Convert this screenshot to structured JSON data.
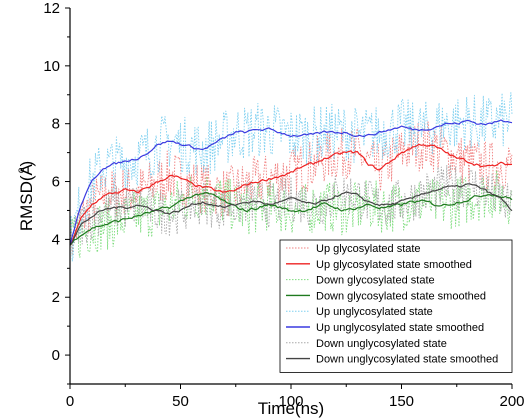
{
  "chart_data": {
    "type": "line",
    "xlabel": "Time(ns)",
    "ylabel": "RMSD(Å)",
    "ylabel_main": "RMSD(",
    "ylabel_unit": "A",
    "ylabel_ring": "o",
    "ylabel_close": ")",
    "xlim": [
      0,
      200
    ],
    "ylim": [
      -1,
      12
    ],
    "xticks": [
      0,
      50,
      100,
      150,
      200
    ],
    "yticks": [
      0,
      2,
      4,
      6,
      8,
      10,
      12
    ],
    "grid": false,
    "legend_position": "bottom-right",
    "x": [
      0,
      5,
      10,
      15,
      20,
      25,
      30,
      35,
      40,
      45,
      50,
      55,
      60,
      65,
      70,
      75,
      80,
      85,
      90,
      95,
      100,
      105,
      110,
      115,
      120,
      125,
      130,
      135,
      140,
      145,
      150,
      155,
      160,
      165,
      170,
      175,
      180,
      185,
      190,
      195,
      200
    ],
    "series": [
      {
        "name": "Up glycosylated state",
        "style": "dotted",
        "color": "#f08080",
        "noise": 0.9,
        "values": [
          3.8,
          4.7,
          5.2,
          5.5,
          5.6,
          5.7,
          5.6,
          5.8,
          6.0,
          6.2,
          6.1,
          5.9,
          5.8,
          5.7,
          5.6,
          5.7,
          5.9,
          6.0,
          6.1,
          6.2,
          6.3,
          6.5,
          6.6,
          6.8,
          6.9,
          7.0,
          7.0,
          6.6,
          6.4,
          6.7,
          7.0,
          7.2,
          7.3,
          7.2,
          7.0,
          6.8,
          6.7,
          6.6,
          6.5,
          6.6,
          6.6
        ]
      },
      {
        "name": "Up glycosylated state smoothed",
        "style": "solid",
        "color": "#ee2222",
        "noise": 0.12,
        "values": [
          3.8,
          4.7,
          5.2,
          5.5,
          5.6,
          5.7,
          5.6,
          5.8,
          6.0,
          6.2,
          6.1,
          5.9,
          5.8,
          5.7,
          5.6,
          5.7,
          5.9,
          6.0,
          6.1,
          6.2,
          6.3,
          6.5,
          6.6,
          6.8,
          6.9,
          7.0,
          7.0,
          6.6,
          6.4,
          6.7,
          7.0,
          7.2,
          7.3,
          7.2,
          7.0,
          6.8,
          6.7,
          6.6,
          6.5,
          6.6,
          6.6
        ]
      },
      {
        "name": "Down glycosylated state",
        "style": "dotted",
        "color": "#7ddc7d",
        "noise": 0.9,
        "values": [
          3.8,
          4.2,
          4.4,
          4.5,
          4.6,
          4.7,
          4.8,
          4.9,
          5.0,
          5.1,
          5.3,
          5.5,
          5.6,
          5.5,
          5.3,
          5.1,
          5.0,
          5.1,
          5.2,
          5.1,
          5.0,
          5.0,
          5.1,
          5.2,
          5.1,
          5.0,
          5.1,
          5.2,
          5.1,
          5.1,
          5.2,
          5.3,
          5.3,
          5.2,
          5.2,
          5.3,
          5.4,
          5.5,
          5.6,
          5.5,
          5.4
        ]
      },
      {
        "name": "Down glycosylated state smoothed",
        "style": "solid",
        "color": "#1f7a1f",
        "noise": 0.12,
        "values": [
          3.8,
          4.2,
          4.4,
          4.5,
          4.6,
          4.7,
          4.8,
          4.9,
          5.0,
          5.1,
          5.3,
          5.5,
          5.6,
          5.5,
          5.3,
          5.1,
          5.0,
          5.1,
          5.2,
          5.1,
          5.0,
          5.0,
          5.1,
          5.2,
          5.1,
          5.0,
          5.1,
          5.2,
          5.1,
          5.1,
          5.2,
          5.3,
          5.3,
          5.2,
          5.2,
          5.3,
          5.4,
          5.5,
          5.6,
          5.5,
          5.4
        ]
      },
      {
        "name": "Up unglycosylated state",
        "style": "dotted",
        "color": "#7fd0f0",
        "noise": 1.0,
        "values": [
          3.8,
          5.2,
          6.0,
          6.5,
          6.6,
          6.7,
          6.8,
          7.0,
          7.3,
          7.4,
          7.3,
          7.2,
          7.1,
          7.3,
          7.5,
          7.7,
          7.7,
          7.8,
          7.8,
          7.7,
          7.6,
          7.6,
          7.6,
          7.7,
          7.7,
          7.7,
          7.6,
          7.6,
          7.7,
          7.8,
          7.9,
          7.8,
          7.8,
          7.9,
          8.0,
          8.0,
          8.1,
          8.0,
          8.0,
          8.1,
          8.1
        ]
      },
      {
        "name": "Up unglycosylated state smoothed",
        "style": "solid",
        "color": "#3a3ae0",
        "noise": 0.1,
        "values": [
          3.8,
          5.2,
          6.0,
          6.5,
          6.6,
          6.7,
          6.8,
          7.0,
          7.3,
          7.4,
          7.3,
          7.2,
          7.1,
          7.3,
          7.5,
          7.7,
          7.7,
          7.8,
          7.8,
          7.7,
          7.6,
          7.6,
          7.6,
          7.7,
          7.7,
          7.7,
          7.6,
          7.6,
          7.7,
          7.8,
          7.9,
          7.8,
          7.8,
          7.9,
          8.0,
          8.0,
          8.1,
          8.0,
          8.0,
          8.1,
          8.1
        ]
      },
      {
        "name": "Down unglycosylated state",
        "style": "dotted",
        "color": "#a8a8a8",
        "noise": 0.8,
        "values": [
          3.8,
          4.5,
          4.8,
          5.0,
          5.1,
          5.1,
          5.2,
          5.1,
          5.0,
          4.9,
          5.0,
          5.2,
          5.3,
          5.2,
          5.1,
          5.2,
          5.3,
          5.3,
          5.2,
          5.3,
          5.4,
          5.3,
          5.2,
          5.3,
          5.5,
          5.6,
          5.5,
          5.3,
          5.2,
          5.2,
          5.3,
          5.4,
          5.6,
          5.7,
          5.8,
          5.8,
          5.9,
          5.8,
          5.6,
          5.4,
          5.0
        ]
      },
      {
        "name": "Down unglycosylated state smoothed",
        "style": "solid",
        "color": "#444444",
        "noise": 0.1,
        "values": [
          3.8,
          4.5,
          4.8,
          5.0,
          5.1,
          5.1,
          5.2,
          5.1,
          5.0,
          4.9,
          5.0,
          5.2,
          5.3,
          5.2,
          5.1,
          5.2,
          5.3,
          5.3,
          5.2,
          5.3,
          5.4,
          5.3,
          5.2,
          5.3,
          5.5,
          5.6,
          5.5,
          5.3,
          5.2,
          5.2,
          5.3,
          5.4,
          5.6,
          5.7,
          5.8,
          5.8,
          5.9,
          5.8,
          5.6,
          5.4,
          5.0
        ]
      }
    ]
  }
}
